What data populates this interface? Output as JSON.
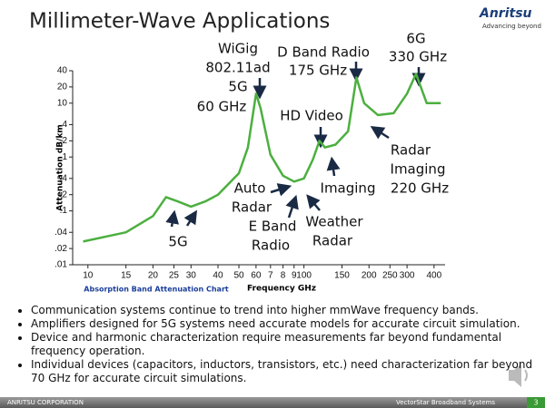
{
  "header": {
    "title": "Millimeter-Wave Applications",
    "logo": "Anritsu",
    "tagline": "Advancing beyond"
  },
  "chart_data": {
    "type": "line",
    "caption": "Absorption Band Attenuation Chart",
    "x_label": "Frequency GHz",
    "y_label": "Attenuation dB/km",
    "log_x": true,
    "log_y": true,
    "color": "#4caf3f",
    "x": [
      9.5,
      15,
      20,
      23,
      26,
      30,
      35,
      40,
      50,
      55,
      60,
      63,
      70,
      80,
      90,
      100,
      110,
      118,
      125,
      140,
      160,
      175,
      190,
      220,
      260,
      300,
      330,
      370,
      430
    ],
    "values": [
      0.027,
      0.04,
      0.08,
      0.18,
      0.15,
      0.12,
      0.15,
      0.2,
      0.5,
      1.5,
      15,
      8,
      1.1,
      0.45,
      0.35,
      0.4,
      0.9,
      2,
      1.5,
      1.7,
      3,
      30,
      10,
      6,
      6.5,
      15,
      35,
      10,
      10
    ],
    "xlim": [
      8.5,
      450
    ],
    "ylim": [
      0.01,
      40
    ],
    "xticks": [
      10,
      15,
      20,
      25,
      30,
      40,
      50,
      60,
      {
        "value": 70,
        "label": "7"
      },
      {
        "value": 80,
        "label": "8"
      },
      {
        "value": 90,
        "label": "9"
      },
      100,
      150,
      200,
      250,
      300,
      400
    ],
    "yticks": [
      {
        "value": 0.01,
        "label": ".01"
      },
      {
        "value": 0.02,
        "label": ".02"
      },
      {
        "value": 0.04,
        "label": ".04"
      },
      {
        "value": 0.1,
        "label": ".1"
      },
      {
        "value": 0.2,
        "label": ".2"
      },
      {
        "value": 0.4,
        "label": ".4"
      },
      1,
      2,
      4,
      10,
      20,
      40
    ],
    "annotations": [
      {
        "lines": [
          "WiGig",
          "802.11ad",
          "5G",
          "60 GHz"
        ]
      },
      {
        "lines": [
          "D Band Radio",
          "175 GHz"
        ]
      },
      {
        "lines": [
          "6G",
          "330 GHz"
        ]
      },
      {
        "lines": [
          "HD Video"
        ]
      },
      {
        "lines": [
          "Imaging"
        ]
      },
      {
        "lines": [
          "Radar",
          "Imaging",
          "220 GHz"
        ]
      },
      {
        "lines": [
          "Auto",
          "Radar"
        ]
      },
      {
        "lines": [
          "E Band",
          "Radio"
        ]
      },
      {
        "lines": [
          "Weather",
          "Radar"
        ]
      },
      {
        "lines": [
          "5G"
        ]
      }
    ]
  },
  "bullets": [
    "Communication systems continue to trend into higher mmWave frequency bands.",
    "Amplifiers designed for 5G systems need accurate models for accurate circuit simulation.",
    "Device and harmonic characterization require measurements far beyond fundamental frequency operation.",
    "Individual devices (capacitors, inductors, transistors, etc.) need characterization far beyond 70 GHz for accurate circuit simulations."
  ],
  "footer": {
    "company": "ANRITSU CORPORATION",
    "product": "VectorStar Broadband Systems",
    "page": "3"
  }
}
